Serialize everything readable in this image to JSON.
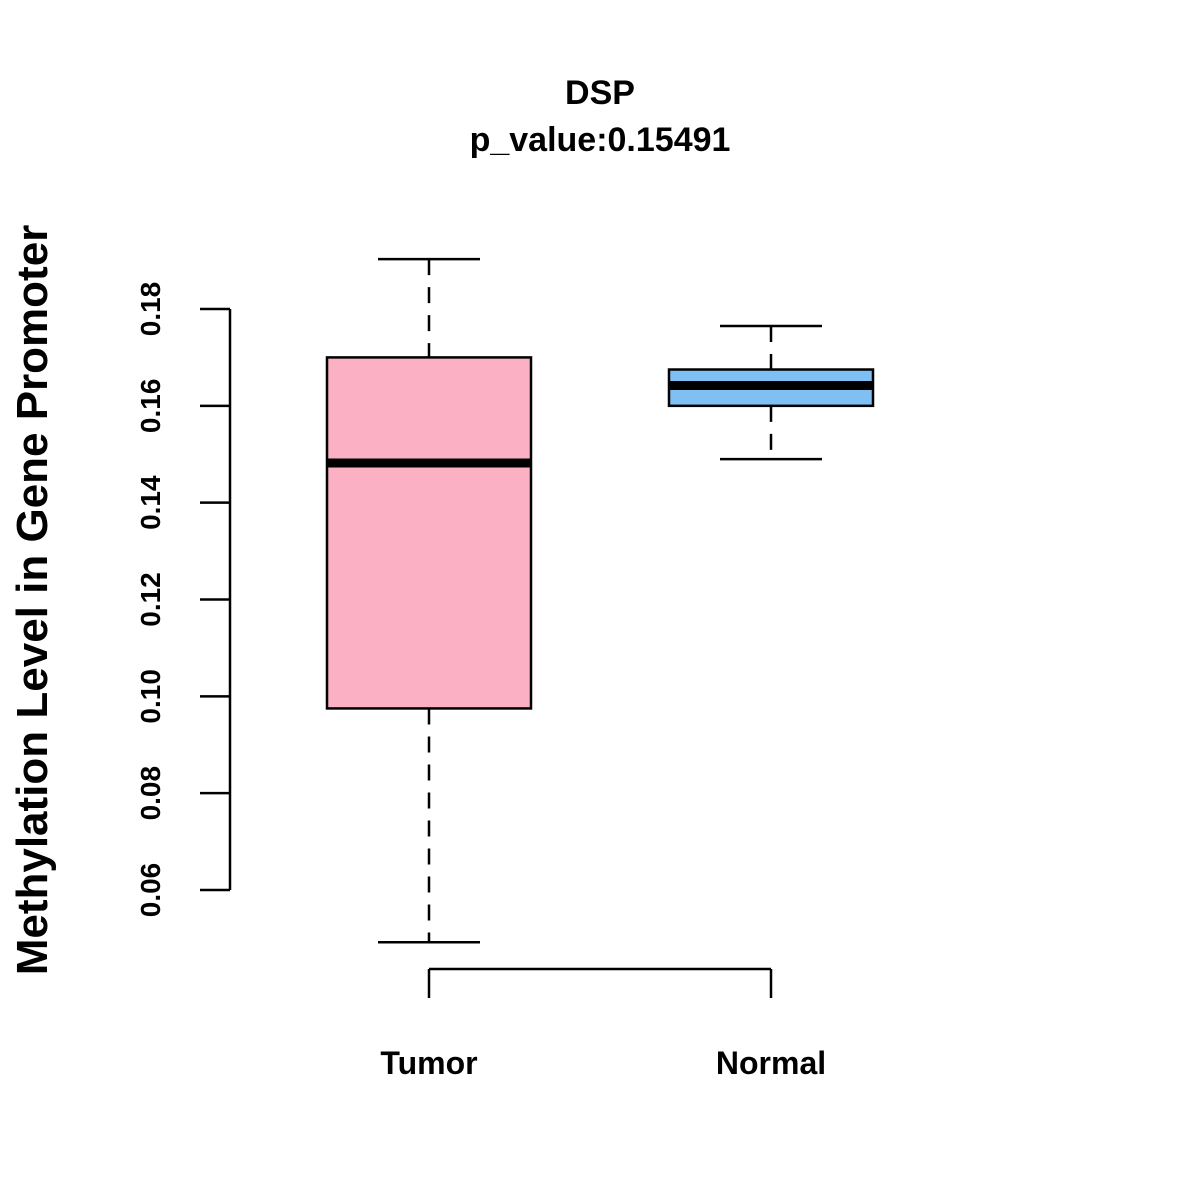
{
  "chart_data": {
    "type": "boxplot",
    "title": "DSP",
    "subtitle": "p_value:0.15491",
    "xlabel": "",
    "ylabel": "Methylation Level in Gene Promoter",
    "ylim": [
      0.06,
      0.18
    ],
    "y_ticks": [
      0.06,
      0.08,
      0.1,
      0.12,
      0.14,
      0.16,
      0.18
    ],
    "y_tick_labels": [
      "0.06",
      "0.08",
      "0.10",
      "0.12",
      "0.14",
      "0.16",
      "0.18"
    ],
    "categories": [
      "Tumor",
      "Normal"
    ],
    "series": [
      {
        "name": "Tumor",
        "color": "#FBB1C3",
        "whisker_low": 0.0492,
        "q1": 0.0975,
        "median": 0.1482,
        "q3": 0.17,
        "whisker_high": 0.1903
      },
      {
        "name": "Normal",
        "color": "#7EC0F4",
        "whisker_low": 0.149,
        "q1": 0.16,
        "median": 0.1642,
        "q3": 0.1675,
        "whisker_high": 0.1765
      }
    ],
    "grid": false,
    "legend": "none"
  }
}
